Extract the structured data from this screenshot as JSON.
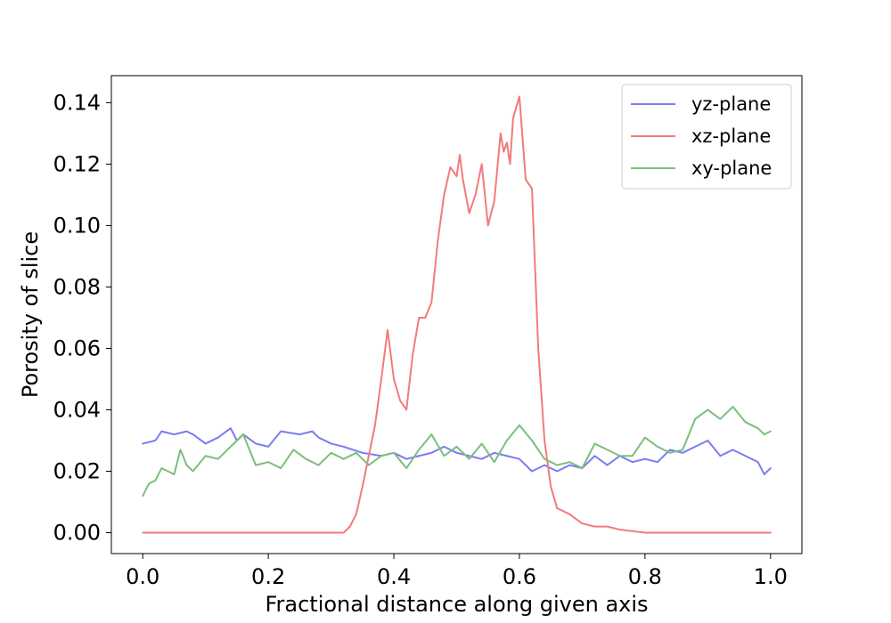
{
  "chart_data": {
    "type": "line",
    "title": "",
    "xlabel": "Fractional distance along given axis",
    "ylabel": "Porosity of slice",
    "xlim": [
      -0.05,
      1.05
    ],
    "ylim": [
      -0.0068,
      0.1488
    ],
    "xticks": [
      0.0,
      0.2,
      0.4,
      0.6,
      0.8,
      1.0
    ],
    "xtick_labels": [
      "0.0",
      "0.2",
      "0.4",
      "0.6",
      "0.8",
      "1.0"
    ],
    "yticks": [
      0.0,
      0.02,
      0.04,
      0.06,
      0.08,
      0.1,
      0.12,
      0.14
    ],
    "ytick_labels": [
      "0.00",
      "0.02",
      "0.04",
      "0.06",
      "0.08",
      "0.10",
      "0.12",
      "0.14"
    ],
    "grid": false,
    "legend_position": "top-right",
    "series": [
      {
        "name": "yz-plane",
        "color": "#7b7bf2",
        "x": [
          0.0,
          0.02,
          0.03,
          0.05,
          0.07,
          0.08,
          0.1,
          0.12,
          0.14,
          0.15,
          0.16,
          0.18,
          0.2,
          0.22,
          0.25,
          0.27,
          0.28,
          0.3,
          0.32,
          0.35,
          0.38,
          0.4,
          0.42,
          0.44,
          0.46,
          0.48,
          0.5,
          0.52,
          0.54,
          0.56,
          0.58,
          0.6,
          0.62,
          0.64,
          0.66,
          0.68,
          0.7,
          0.72,
          0.74,
          0.76,
          0.78,
          0.8,
          0.82,
          0.84,
          0.86,
          0.88,
          0.9,
          0.92,
          0.94,
          0.96,
          0.98,
          0.99,
          1.0
        ],
        "y": [
          0.029,
          0.03,
          0.033,
          0.032,
          0.033,
          0.032,
          0.029,
          0.031,
          0.034,
          0.03,
          0.032,
          0.029,
          0.028,
          0.033,
          0.032,
          0.033,
          0.031,
          0.029,
          0.028,
          0.026,
          0.025,
          0.026,
          0.024,
          0.025,
          0.026,
          0.028,
          0.026,
          0.025,
          0.024,
          0.026,
          0.025,
          0.024,
          0.02,
          0.022,
          0.02,
          0.022,
          0.021,
          0.025,
          0.022,
          0.025,
          0.023,
          0.024,
          0.023,
          0.027,
          0.026,
          0.028,
          0.03,
          0.025,
          0.027,
          0.025,
          0.023,
          0.019,
          0.021
        ]
      },
      {
        "name": "xz-plane",
        "color": "#f27b7b",
        "x": [
          0.0,
          0.1,
          0.2,
          0.3,
          0.32,
          0.33,
          0.34,
          0.35,
          0.36,
          0.37,
          0.38,
          0.39,
          0.4,
          0.41,
          0.42,
          0.43,
          0.44,
          0.45,
          0.46,
          0.47,
          0.48,
          0.49,
          0.5,
          0.505,
          0.51,
          0.52,
          0.53,
          0.54,
          0.55,
          0.56,
          0.57,
          0.575,
          0.58,
          0.585,
          0.59,
          0.6,
          0.61,
          0.62,
          0.63,
          0.64,
          0.65,
          0.66,
          0.67,
          0.68,
          0.7,
          0.72,
          0.74,
          0.76,
          0.78,
          0.8,
          0.9,
          1.0
        ],
        "y": [
          0.0,
          0.0,
          0.0,
          0.0,
          0.0,
          0.002,
          0.006,
          0.015,
          0.025,
          0.035,
          0.05,
          0.066,
          0.05,
          0.043,
          0.04,
          0.058,
          0.07,
          0.07,
          0.075,
          0.095,
          0.11,
          0.119,
          0.116,
          0.123,
          0.115,
          0.104,
          0.11,
          0.12,
          0.1,
          0.108,
          0.13,
          0.124,
          0.127,
          0.12,
          0.135,
          0.142,
          0.115,
          0.112,
          0.06,
          0.03,
          0.015,
          0.008,
          0.007,
          0.006,
          0.003,
          0.002,
          0.002,
          0.001,
          0.0005,
          0.0,
          0.0,
          0.0
        ]
      },
      {
        "name": "xy-plane",
        "color": "#7bbf7b",
        "x": [
          0.0,
          0.01,
          0.02,
          0.03,
          0.04,
          0.05,
          0.06,
          0.07,
          0.08,
          0.1,
          0.12,
          0.14,
          0.16,
          0.18,
          0.2,
          0.22,
          0.24,
          0.26,
          0.28,
          0.3,
          0.32,
          0.34,
          0.36,
          0.38,
          0.4,
          0.42,
          0.44,
          0.46,
          0.48,
          0.5,
          0.52,
          0.54,
          0.56,
          0.58,
          0.6,
          0.62,
          0.64,
          0.66,
          0.68,
          0.7,
          0.72,
          0.74,
          0.76,
          0.78,
          0.8,
          0.82,
          0.84,
          0.86,
          0.88,
          0.9,
          0.92,
          0.94,
          0.96,
          0.98,
          0.99,
          1.0
        ],
        "y": [
          0.012,
          0.016,
          0.017,
          0.021,
          0.02,
          0.019,
          0.027,
          0.022,
          0.02,
          0.025,
          0.024,
          0.028,
          0.032,
          0.022,
          0.023,
          0.021,
          0.027,
          0.024,
          0.022,
          0.026,
          0.024,
          0.026,
          0.022,
          0.025,
          0.026,
          0.021,
          0.027,
          0.032,
          0.025,
          0.028,
          0.024,
          0.029,
          0.023,
          0.03,
          0.035,
          0.03,
          0.024,
          0.022,
          0.023,
          0.021,
          0.029,
          0.027,
          0.025,
          0.025,
          0.031,
          0.028,
          0.026,
          0.027,
          0.037,
          0.04,
          0.037,
          0.041,
          0.036,
          0.034,
          0.032,
          0.033
        ]
      }
    ]
  }
}
